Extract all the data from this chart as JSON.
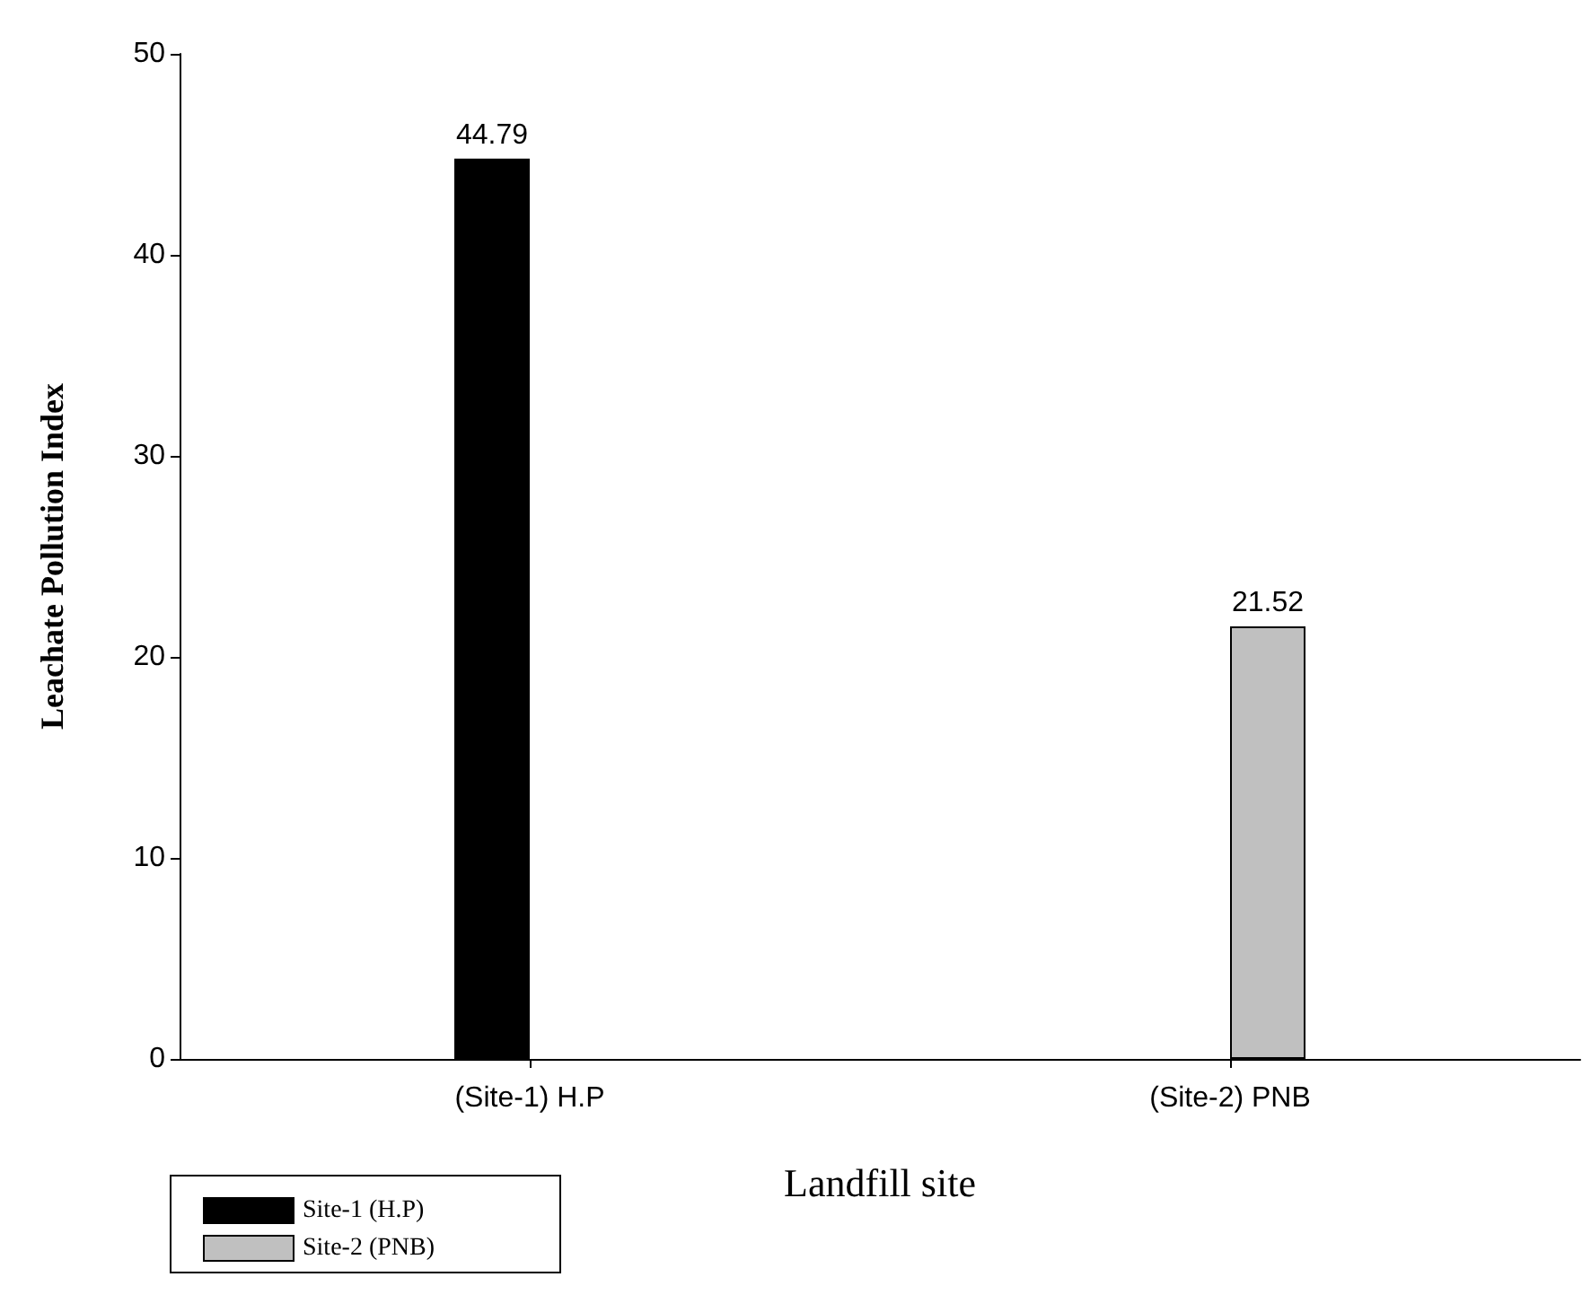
{
  "chart_data": {
    "type": "bar",
    "xlabel": "Landfill site",
    "ylabel": "Leachate Pollution Index",
    "categories": [
      "(Site-1) H.P",
      "(Site-2) PNB"
    ],
    "series": [
      {
        "name": "Site-1 (H.P)",
        "color": "#000000",
        "values": [
          44.79,
          null
        ]
      },
      {
        "name": "Site-2 (PNB)",
        "color": "#c0c0c0",
        "values": [
          null,
          21.52
        ]
      }
    ],
    "ylim": [
      0,
      50
    ],
    "yticks": [
      0,
      10,
      20,
      30,
      40,
      50
    ],
    "data_labels": true,
    "grid": false,
    "legend": "bottom left"
  }
}
